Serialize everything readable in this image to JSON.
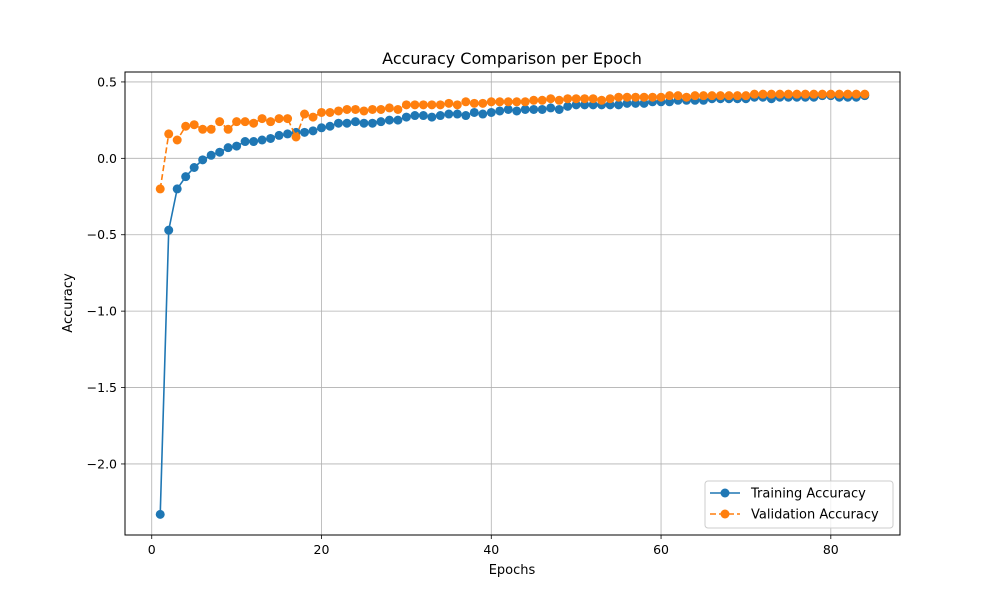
{
  "chart_data": {
    "type": "line",
    "title": "Accuracy Comparison per Epoch",
    "xlabel": "Epochs",
    "ylabel": "Accuracy",
    "xlim": [
      -3.15,
      88.15
    ],
    "ylim": [
      -2.465,
      0.565
    ],
    "xticks": [
      0,
      20,
      40,
      60,
      80
    ],
    "xtick_labels": [
      "0",
      "20",
      "40",
      "60",
      "80"
    ],
    "yticks": [
      -2.0,
      -1.5,
      -1.0,
      -0.5,
      0.0,
      0.5
    ],
    "ytick_labels": [
      "−2.0",
      "−1.5",
      "−1.0",
      "−0.5",
      "0.0",
      "0.5"
    ],
    "grid": true,
    "legend_position": "bottom-right",
    "x": [
      1,
      2,
      3,
      4,
      5,
      6,
      7,
      8,
      9,
      10,
      11,
      12,
      13,
      14,
      15,
      16,
      17,
      18,
      19,
      20,
      21,
      22,
      23,
      24,
      25,
      26,
      27,
      28,
      29,
      30,
      31,
      32,
      33,
      34,
      35,
      36,
      37,
      38,
      39,
      40,
      41,
      42,
      43,
      44,
      45,
      46,
      47,
      48,
      49,
      50,
      51,
      52,
      53,
      54,
      55,
      56,
      57,
      58,
      59,
      60,
      61,
      62,
      63,
      64,
      65,
      66,
      67,
      68,
      69,
      70,
      71,
      72,
      73,
      74,
      75,
      76,
      77,
      78,
      79,
      80,
      81,
      82,
      83,
      84
    ],
    "series": [
      {
        "name": "Training Accuracy",
        "color": "#1f77b4",
        "line_style": "solid",
        "marker": "circle",
        "values": [
          -2.33,
          -0.47,
          -0.2,
          -0.12,
          -0.06,
          -0.01,
          0.02,
          0.04,
          0.07,
          0.08,
          0.11,
          0.11,
          0.12,
          0.13,
          0.15,
          0.16,
          0.17,
          0.17,
          0.18,
          0.2,
          0.21,
          0.23,
          0.23,
          0.24,
          0.23,
          0.23,
          0.24,
          0.25,
          0.25,
          0.27,
          0.28,
          0.28,
          0.27,
          0.28,
          0.29,
          0.29,
          0.28,
          0.3,
          0.29,
          0.3,
          0.31,
          0.32,
          0.31,
          0.32,
          0.32,
          0.32,
          0.33,
          0.32,
          0.34,
          0.35,
          0.35,
          0.35,
          0.35,
          0.35,
          0.35,
          0.36,
          0.36,
          0.36,
          0.37,
          0.37,
          0.37,
          0.38,
          0.38,
          0.38,
          0.38,
          0.39,
          0.39,
          0.39,
          0.39,
          0.39,
          0.4,
          0.4,
          0.39,
          0.4,
          0.4,
          0.4,
          0.4,
          0.4,
          0.41,
          0.41,
          0.4,
          0.4,
          0.4,
          0.41
        ]
      },
      {
        "name": "Validation Accuracy",
        "color": "#ff7f0e",
        "line_style": "dashed",
        "marker": "circle",
        "values": [
          -0.2,
          0.16,
          0.12,
          0.21,
          0.22,
          0.19,
          0.19,
          0.24,
          0.19,
          0.24,
          0.24,
          0.23,
          0.26,
          0.24,
          0.26,
          0.26,
          0.14,
          0.29,
          0.27,
          0.3,
          0.3,
          0.31,
          0.32,
          0.32,
          0.31,
          0.32,
          0.32,
          0.33,
          0.32,
          0.35,
          0.35,
          0.35,
          0.35,
          0.35,
          0.36,
          0.35,
          0.37,
          0.36,
          0.36,
          0.37,
          0.37,
          0.37,
          0.37,
          0.37,
          0.38,
          0.38,
          0.39,
          0.38,
          0.39,
          0.39,
          0.39,
          0.39,
          0.38,
          0.39,
          0.4,
          0.4,
          0.4,
          0.4,
          0.4,
          0.4,
          0.41,
          0.41,
          0.4,
          0.41,
          0.41,
          0.41,
          0.41,
          0.41,
          0.41,
          0.41,
          0.42,
          0.42,
          0.42,
          0.42,
          0.42,
          0.42,
          0.42,
          0.42,
          0.42,
          0.42,
          0.42,
          0.42,
          0.42,
          0.42
        ]
      }
    ]
  }
}
